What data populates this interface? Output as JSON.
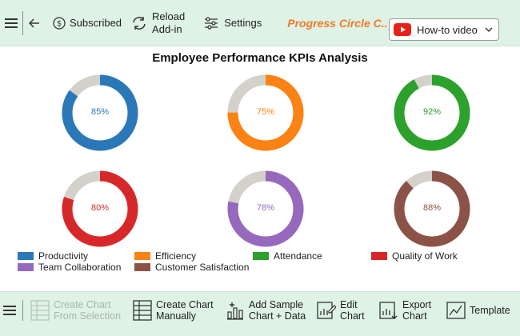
{
  "toolbar": {
    "subscribed_label": "Subscribed",
    "reload_line1": "Reload",
    "reload_line2": "Add-in",
    "settings_label": "Settings",
    "brand": "Progress Circle C...",
    "howto_label": "How-to video"
  },
  "chart_data": {
    "type": "donut",
    "title": "Employee Performance KPIs Analysis",
    "track_color": "#d3d1ca",
    "series": [
      {
        "name": "Productivity",
        "value": 85,
        "label": "85%",
        "color": "#2a78b8"
      },
      {
        "name": "Efficiency",
        "value": 75,
        "label": "75%",
        "color": "#fb8213"
      },
      {
        "name": "Attendance",
        "value": 92,
        "label": "92%",
        "color": "#2ca12c"
      },
      {
        "name": "Quality of Work",
        "value": 80,
        "label": "80%",
        "color": "#d6282a"
      },
      {
        "name": "Team Collaboration",
        "value": 78,
        "label": "78%",
        "color": "#9769bd"
      },
      {
        "name": "Customer Satisfaction",
        "value": 88,
        "label": "88%",
        "color": "#8b5347"
      }
    ]
  },
  "bottom": {
    "create_from_selection_l1": "Create Chart",
    "create_from_selection_l2": "From Selection",
    "create_manual_l1": "Create Chart",
    "create_manual_l2": "Manually",
    "add_sample_l1": "Add Sample",
    "add_sample_l2": "Chart + Data",
    "edit_l1": "Edit",
    "edit_l2": "Chart",
    "export_l1": "Export",
    "export_l2": "Chart",
    "template_label": "Template"
  }
}
